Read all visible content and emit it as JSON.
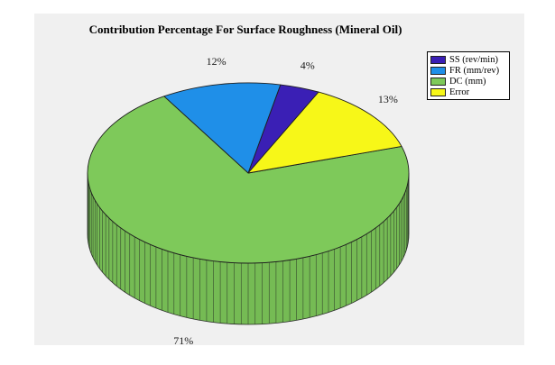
{
  "chart_data": {
    "type": "pie",
    "style": "3d",
    "title": "Contribution Percentage For Surface Roughness (Mineral Oil)",
    "slices": [
      {
        "name": "SS (rev/min)",
        "value": 4,
        "label": "4%",
        "color": "#3a1fb5"
      },
      {
        "name": "FR (mm/rev)",
        "value": 12,
        "label": "12%",
        "color": "#1f8fe8"
      },
      {
        "name": "DC (mm)",
        "value": 71,
        "label": "71%",
        "color": "#7ec95a"
      },
      {
        "name": "Error",
        "value": 13,
        "label": "13%",
        "color": "#f7f718"
      }
    ],
    "legend_position": "top-right"
  }
}
